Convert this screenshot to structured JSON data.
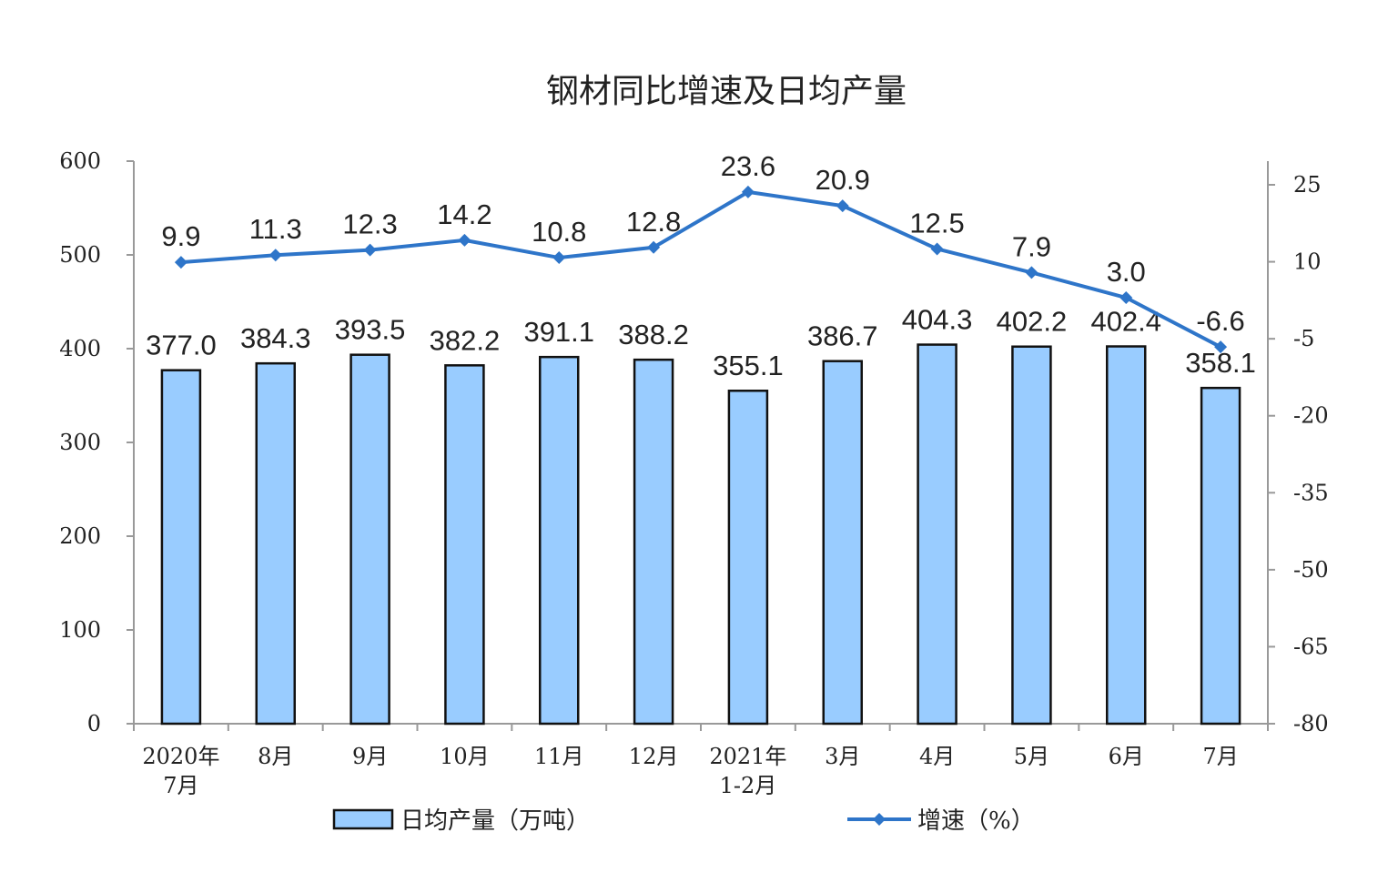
{
  "chart_data": {
    "type": "bar",
    "title": "钢材同比增速及日均产量",
    "categories": [
      [
        "2020年",
        "7月"
      ],
      [
        "8月"
      ],
      [
        "9月"
      ],
      [
        "10月"
      ],
      [
        "11月"
      ],
      [
        "12月"
      ],
      [
        "2021年",
        "1-2月"
      ],
      [
        "3月"
      ],
      [
        "4月"
      ],
      [
        "5月"
      ],
      [
        "6月"
      ],
      [
        "7月"
      ]
    ],
    "series": [
      {
        "name": "日均产量（万吨）",
        "type": "bar",
        "axis": "left",
        "values": [
          377.0,
          384.3,
          393.5,
          382.2,
          391.1,
          388.2,
          355.1,
          386.7,
          404.3,
          402.2,
          402.4,
          358.1
        ],
        "labels": [
          "377.0",
          "384.3",
          "393.5",
          "382.2",
          "391.1",
          "388.2",
          "355.1",
          "386.7",
          "404.3",
          "402.2",
          "402.4",
          "358.1"
        ]
      },
      {
        "name": "增速（%）",
        "type": "line",
        "axis": "right",
        "values": [
          9.9,
          11.3,
          12.3,
          14.2,
          10.8,
          12.8,
          23.6,
          20.9,
          12.5,
          7.9,
          3.0,
          -6.6
        ],
        "labels": [
          "9.9",
          "11.3",
          "12.3",
          "14.2",
          "10.8",
          "12.8",
          "23.6",
          "20.9",
          "12.5",
          "7.9",
          "3.0",
          "-6.6"
        ]
      }
    ],
    "y_left": {
      "min": 0,
      "max": 600,
      "ticks": [
        "0",
        "100",
        "200",
        "300",
        "400",
        "500",
        "600"
      ]
    },
    "y_right": {
      "min": -80,
      "max": 25,
      "ticks": [
        "-80",
        "-65",
        "-50",
        "-35",
        "-20",
        "-5",
        "10",
        "25"
      ]
    },
    "grid": false,
    "legend_position": "bottom",
    "colors": {
      "bar_fill": "#99CCFF",
      "bar_stroke": "#111111",
      "line": "#2E75C9",
      "axis": "#999999"
    }
  }
}
